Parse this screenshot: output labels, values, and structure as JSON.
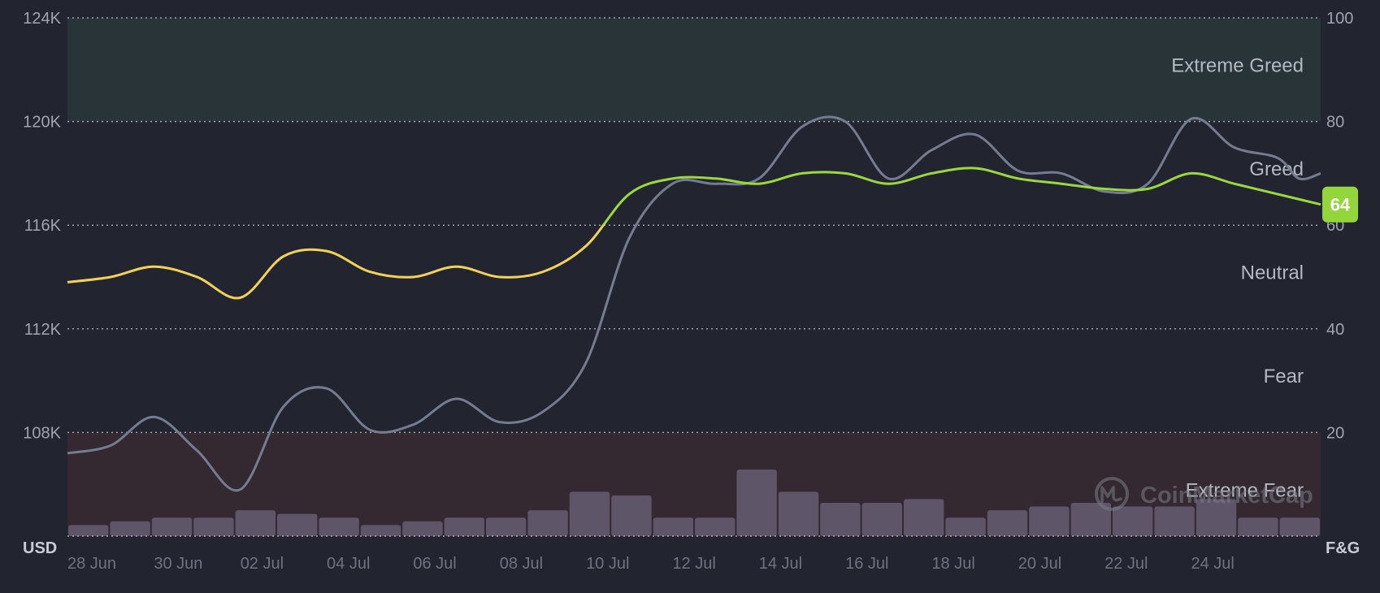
{
  "chart_data": {
    "type": "line",
    "colors": {
      "background": "#222530",
      "grid": "#c8ccd6",
      "axis_text": "#a0a4b0",
      "zone_text": "#b4b8c2",
      "price_line": "#747c92",
      "fg_neutral": "#f2d256",
      "fg_greed": "#9ad83e",
      "volume_bar": "#5e5568",
      "extreme_greed_zone": "#283438",
      "extreme_fear_zone": "#342931",
      "badge": "#93d63c",
      "watermark": "#7a7d88"
    },
    "left_axis": {
      "label": "USD",
      "ticks": [
        "108K",
        "112K",
        "116K",
        "120K",
        "124K"
      ],
      "values": [
        108000,
        112000,
        116000,
        120000,
        124000
      ],
      "range": [
        104000,
        124000
      ]
    },
    "right_axis": {
      "label": "F&G",
      "ticks": [
        "20",
        "40",
        "60",
        "80",
        "100"
      ],
      "values": [
        20,
        40,
        60,
        80,
        100
      ],
      "range": [
        0,
        100
      ]
    },
    "x_ticks": [
      "28 Jun",
      "30 Jun",
      "02 Jul",
      "04 Jul",
      "06 Jul",
      "08 Jul",
      "10 Jul",
      "12 Jul",
      "14 Jul",
      "16 Jul",
      "18 Jul",
      "20 Jul",
      "22 Jul",
      "24 Jul"
    ],
    "x_range": [
      0,
      29
    ],
    "zones": [
      {
        "name": "Extreme Greed",
        "from": 80,
        "to": 100,
        "label_at": 91
      },
      {
        "name": "Greed",
        "from": 60,
        "to": 80,
        "label_at": 71
      },
      {
        "name": "Neutral",
        "from": 40,
        "to": 60,
        "label_at": 51
      },
      {
        "name": "Fear",
        "from": 20,
        "to": 40,
        "label_at": 31
      },
      {
        "name": "Extreme Fear",
        "from": 0,
        "to": 20,
        "label_at": 9
      }
    ],
    "series": [
      {
        "axis": "left",
        "points": [
          [
            0,
            107200
          ],
          [
            1,
            107500
          ],
          [
            2,
            108600
          ],
          [
            3,
            107300
          ],
          [
            4,
            105800
          ],
          [
            5,
            109000
          ],
          [
            6,
            109700
          ],
          [
            7,
            108100
          ],
          [
            8,
            108300
          ],
          [
            9,
            109300
          ],
          [
            10,
            108400
          ],
          [
            11,
            108800
          ],
          [
            12,
            110700
          ],
          [
            13,
            115500
          ],
          [
            14,
            117600
          ],
          [
            15,
            117600
          ],
          [
            16,
            117800
          ],
          [
            17,
            119800
          ],
          [
            18,
            120000
          ],
          [
            19,
            117800
          ],
          [
            20,
            118900
          ],
          [
            21,
            119500
          ],
          [
            22,
            118100
          ],
          [
            23,
            118000
          ],
          [
            24,
            117300
          ],
          [
            25,
            117600
          ],
          [
            26,
            120100
          ],
          [
            27,
            119000
          ],
          [
            28,
            118600
          ],
          [
            28.5,
            117800
          ],
          [
            29,
            118000
          ]
        ]
      },
      {
        "axis": "right",
        "points": [
          [
            0,
            49
          ],
          [
            1,
            50
          ],
          [
            2,
            52
          ],
          [
            3,
            50
          ],
          [
            4,
            46
          ],
          [
            5,
            54
          ],
          [
            6,
            55
          ],
          [
            7,
            51
          ],
          [
            8,
            50
          ],
          [
            9,
            52
          ],
          [
            10,
            50
          ],
          [
            11,
            51
          ],
          [
            12,
            56
          ],
          [
            13,
            66
          ],
          [
            14,
            69
          ],
          [
            15,
            69
          ],
          [
            16,
            68
          ],
          [
            17,
            70
          ],
          [
            18,
            70
          ],
          [
            19,
            68
          ],
          [
            20,
            70
          ],
          [
            21,
            71
          ],
          [
            22,
            69
          ],
          [
            23,
            68
          ],
          [
            24,
            67
          ],
          [
            25,
            67
          ],
          [
            26,
            70
          ],
          [
            27,
            68
          ],
          [
            28,
            66
          ],
          [
            29,
            64
          ]
        ]
      }
    ],
    "fg_neutral_max": 60,
    "volume": [
      3,
      4,
      5,
      5,
      7,
      6,
      5,
      3,
      4,
      5,
      5,
      7,
      12,
      11,
      5,
      5,
      18,
      12,
      9,
      9,
      10,
      5,
      7,
      8,
      9,
      8,
      8,
      10,
      5,
      5
    ],
    "volume_max": 28,
    "current_value": "64",
    "watermark": "CoinMarketCap"
  }
}
